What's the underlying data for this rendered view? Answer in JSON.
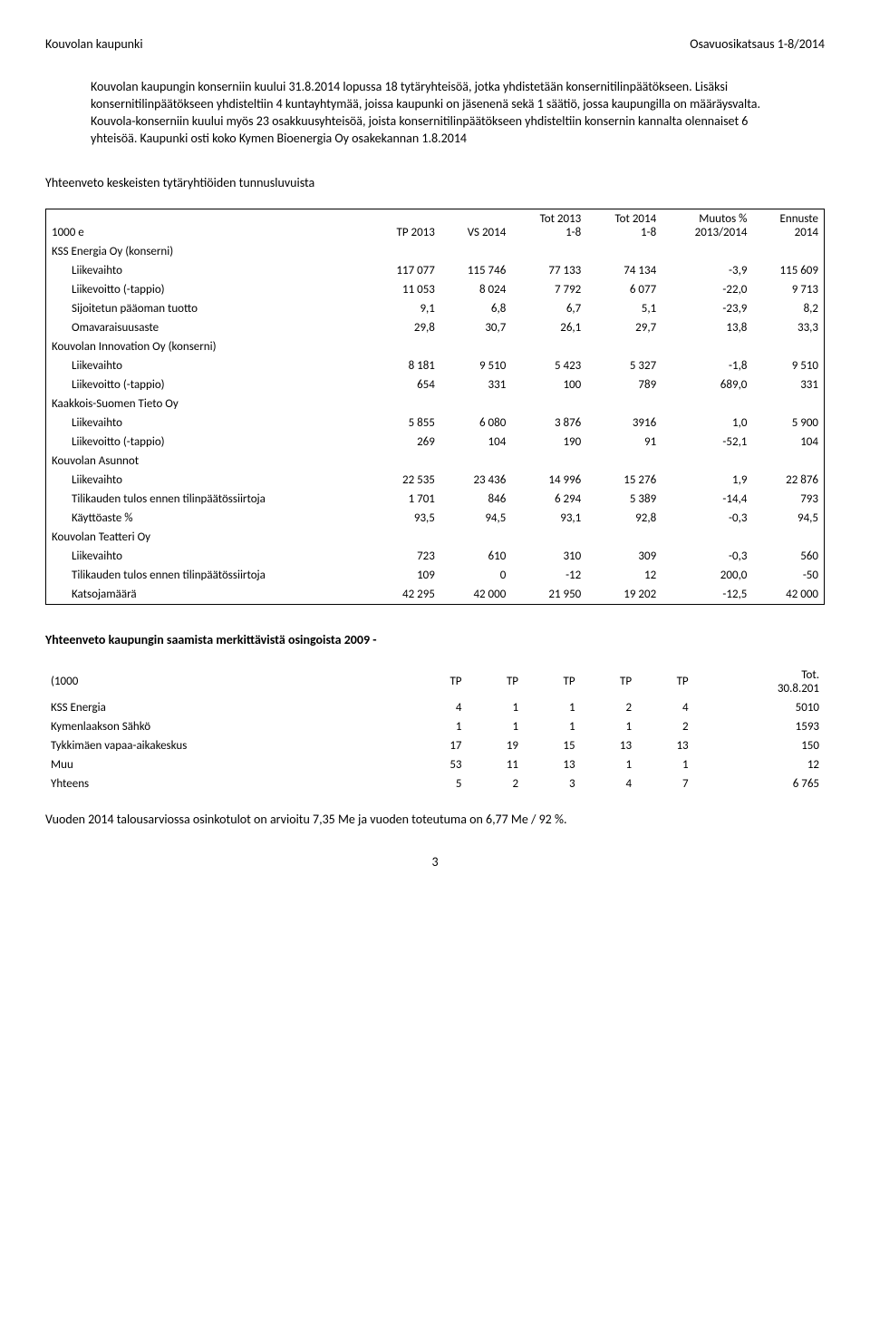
{
  "header": {
    "left": "Kouvolan kaupunki",
    "right": "Osavuosikatsaus 1-8/2014"
  },
  "intro_paragraph": "Kouvolan kaupungin konserniin kuului 31.8.2014 lopussa 18 tytäryhteisöä, jotka yhdistetään konsernitilinpäätökseen. Lisäksi konsernitilinpäätökseen yhdisteltiin 4 kuntayhtymää, joissa kaupunki on jäsenenä sekä 1 säätiö, jossa kaupungilla on määräysvalta. Kouvola-konserniin kuului myös 23 osakkuusyhteisöä, joista konsernitilinpäätökseen yhdisteltiin konsernin kannalta olennaiset 6 yhteisöä. Kaupunki osti koko Kymen Bioenergia Oy osakekannan 1.8.2014",
  "summary_title": "Yhteenveto keskeisten tytäryhtiöiden tunnusluvuista",
  "main_table": {
    "col_labels": {
      "unit": "1000 e",
      "tp2013": "TP 2013",
      "vs2014": "VS 2014",
      "tot2013": "Tot 2013\n1-8",
      "tot2014": "Tot 2014\n1-8",
      "muutos": "Muutos %\n2013/2014",
      "ennuste": "Ennuste\n2014"
    },
    "groups": [
      {
        "title": "KSS Energia Oy (konserni)",
        "rows": [
          {
            "label": "Liikevaihto",
            "v": [
              "117 077",
              "115 746",
              "77 133",
              "74 134",
              "-3,9",
              "115 609"
            ]
          },
          {
            "label": "Liikevoitto (-tappio)",
            "v": [
              "11 053",
              "8 024",
              "7 792",
              "6 077",
              "-22,0",
              "9 713"
            ]
          },
          {
            "label": "Sijoitetun pääoman tuotto",
            "v": [
              "9,1",
              "6,8",
              "6,7",
              "5,1",
              "-23,9",
              "8,2"
            ]
          },
          {
            "label": "Omavaraisuusaste",
            "v": [
              "29,8",
              "30,7",
              "26,1",
              "29,7",
              "13,8",
              "33,3"
            ]
          }
        ]
      },
      {
        "title": "Kouvolan Innovation Oy (konserni)",
        "rows": [
          {
            "label": "Liikevaihto",
            "v": [
              "8 181",
              "9 510",
              "5 423",
              "5 327",
              "-1,8",
              "9 510"
            ]
          },
          {
            "label": "Liikevoitto (-tappio)",
            "v": [
              "654",
              "331",
              "100",
              "789",
              "689,0",
              "331"
            ]
          }
        ]
      },
      {
        "title": "Kaakkois-Suomen Tieto Oy",
        "rows": [
          {
            "label": "Liikevaihto",
            "v": [
              "5 855",
              "6 080",
              "3 876",
              "3916",
              "1,0",
              "5 900"
            ]
          },
          {
            "label": "Liikevoitto (-tappio)",
            "v": [
              "269",
              "104",
              "190",
              "91",
              "-52,1",
              "104"
            ]
          }
        ]
      },
      {
        "title": "Kouvolan Asunnot",
        "rows": [
          {
            "label": "Liikevaihto",
            "v": [
              "22 535",
              "23 436",
              "14 996",
              "15 276",
              "1,9",
              "22 876"
            ]
          },
          {
            "label": "Tilikauden tulos ennen tilinpäätössiirtoja",
            "v": [
              "1 701",
              "846",
              "6 294",
              "5 389",
              "-14,4",
              "793"
            ]
          },
          {
            "label": "Käyttöaste %",
            "v": [
              "93,5",
              "94,5",
              "93,1",
              "92,8",
              "-0,3",
              "94,5"
            ]
          }
        ]
      },
      {
        "title": "Kouvolan Teatteri Oy",
        "rows": [
          {
            "label": "Liikevaihto",
            "v": [
              "723",
              "610",
              "310",
              "309",
              "-0,3",
              "560"
            ]
          },
          {
            "label": "Tilikauden tulos ennen tilinpäätössiirtoja",
            "v": [
              "109",
              "0",
              "-12",
              "12",
              "200,0",
              "-50"
            ]
          },
          {
            "label": "Katsojamäärä",
            "v": [
              "42 295",
              "42 000",
              "21 950",
              "19 202",
              "-12,5",
              "42 000"
            ]
          }
        ]
      }
    ]
  },
  "dividends": {
    "title": "Yhteenveto kaupungin saamista merkittävistä osingoista 2009 -",
    "headers": [
      "(1000",
      "TP",
      "TP",
      "TP",
      "TP",
      "TP",
      "Tot.\n30.8.201"
    ],
    "rows": [
      {
        "label": "KSS Energia",
        "v": [
          "4",
          "1",
          "1",
          "2",
          "4",
          "5010"
        ]
      },
      {
        "label": "Kymenlaakson Sähkö",
        "v": [
          "1",
          "1",
          "1",
          "1",
          "2",
          "1593"
        ]
      },
      {
        "label": "Tykkimäen vapaa-aikakeskus",
        "v": [
          "17",
          "19",
          "15",
          "13",
          "13",
          "150"
        ]
      },
      {
        "label": "Muu",
        "v": [
          "53",
          "11",
          "13",
          "1",
          "1",
          "12"
        ]
      },
      {
        "label": "Yhteens",
        "v": [
          "5",
          "2",
          "3",
          "4",
          "7",
          "6 765"
        ]
      }
    ]
  },
  "footer_line": "Vuoden 2014 talousarviossa osinkotulot on arvioitu 7,35 Me ja vuoden toteutuma on 6,77 Me / 92 %.",
  "page_number": "3"
}
